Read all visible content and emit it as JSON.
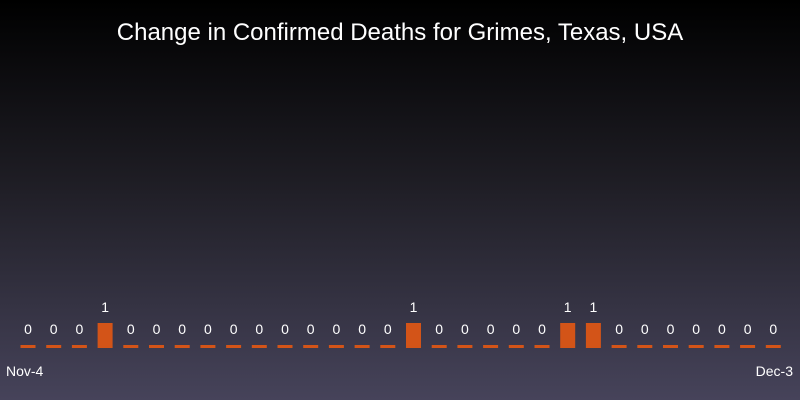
{
  "chart_data": {
    "type": "bar",
    "title": "Change in Confirmed Deaths for Grimes, Texas, USA",
    "x_start_label": "Nov-4",
    "x_end_label": "Dec-3",
    "values": [
      0,
      0,
      0,
      1,
      0,
      0,
      0,
      0,
      0,
      0,
      0,
      0,
      0,
      0,
      0,
      1,
      0,
      0,
      0,
      0,
      0,
      1,
      1,
      0,
      0,
      0,
      0,
      0,
      0,
      0
    ],
    "ylim": [
      0,
      1
    ],
    "grid": false,
    "legend": "none",
    "colors": {
      "bar": "#d35418",
      "label": "#ffffff"
    }
  }
}
